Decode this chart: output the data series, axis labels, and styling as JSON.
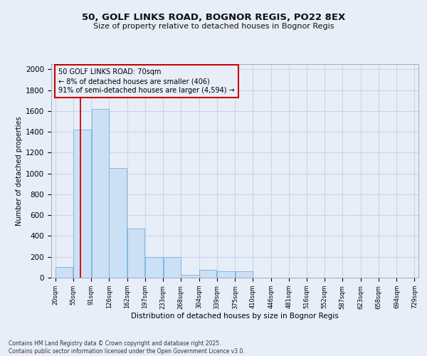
{
  "title1": "50, GOLF LINKS ROAD, BOGNOR REGIS, PO22 8EX",
  "title2": "Size of property relative to detached houses in Bognor Regis",
  "xlabel": "Distribution of detached houses by size in Bognor Regis",
  "ylabel": "Number of detached properties",
  "footer1": "Contains HM Land Registry data © Crown copyright and database right 2025.",
  "footer2": "Contains public sector information licensed under the Open Government Licence v3.0.",
  "annotation_title": "50 GOLF LINKS ROAD: 70sqm",
  "annotation_line1": "← 8% of detached houses are smaller (406)",
  "annotation_line2": "91% of semi-detached houses are larger (4,594) →",
  "subject_size": 70,
  "bar_edges": [
    20,
    55,
    91,
    126,
    162,
    197,
    233,
    268,
    304,
    339,
    375,
    410,
    446,
    481,
    516,
    552,
    587,
    623,
    658,
    694,
    729
  ],
  "bar_heights": [
    100,
    1420,
    1620,
    1050,
    470,
    200,
    200,
    30,
    75,
    60,
    60,
    0,
    0,
    0,
    0,
    0,
    0,
    0,
    0,
    0
  ],
  "bar_color": "#cce0f5",
  "bar_edge_color": "#7ab0d8",
  "grid_color": "#c8d4e8",
  "background_color": "#e8eef8",
  "vline_color": "#cc0000",
  "annotation_box_color": "#cc0000",
  "ylim": [
    0,
    2050
  ],
  "yticks": [
    0,
    200,
    400,
    600,
    800,
    1000,
    1200,
    1400,
    1600,
    1800,
    2000
  ],
  "title1_fontsize": 9.5,
  "title2_fontsize": 8,
  "ylabel_fontsize": 7,
  "xlabel_fontsize": 7.5,
  "ytick_fontsize": 7.5,
  "xtick_fontsize": 6,
  "footer_fontsize": 5.5,
  "annot_fontsize": 7
}
